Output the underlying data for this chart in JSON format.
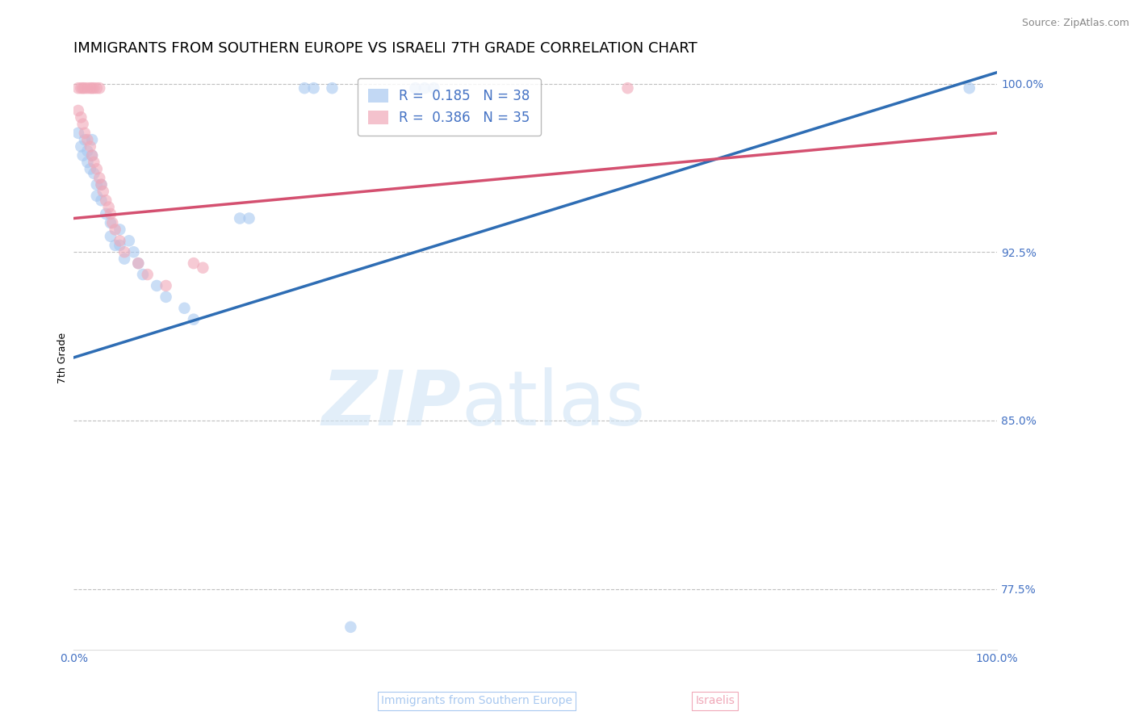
{
  "title": "IMMIGRANTS FROM SOUTHERN EUROPE VS ISRAELI 7TH GRADE CORRELATION CHART",
  "source": "Source: ZipAtlas.com",
  "ylabel": "7th Grade",
  "xlim": [
    0.0,
    1.0
  ],
  "ylim": [
    0.748,
    1.008
  ],
  "yticks": [
    1.0,
    0.925,
    0.85,
    0.775
  ],
  "ytick_labels": [
    "100.0%",
    "92.5%",
    "85.0%",
    "77.5%"
  ],
  "xtick_labels": [
    "0.0%",
    "100.0%"
  ],
  "xticks": [
    0.0,
    1.0
  ],
  "legend_r1": "R =  0.185   N = 38",
  "legend_r2": "R =  0.386   N = 35",
  "blue_scatter": [
    [
      0.005,
      0.978
    ],
    [
      0.008,
      0.972
    ],
    [
      0.01,
      0.968
    ],
    [
      0.012,
      0.975
    ],
    [
      0.015,
      0.97
    ],
    [
      0.015,
      0.965
    ],
    [
      0.018,
      0.962
    ],
    [
      0.02,
      0.975
    ],
    [
      0.02,
      0.968
    ],
    [
      0.022,
      0.96
    ],
    [
      0.025,
      0.955
    ],
    [
      0.025,
      0.95
    ],
    [
      0.03,
      0.955
    ],
    [
      0.03,
      0.948
    ],
    [
      0.035,
      0.942
    ],
    [
      0.04,
      0.938
    ],
    [
      0.04,
      0.932
    ],
    [
      0.045,
      0.928
    ],
    [
      0.05,
      0.935
    ],
    [
      0.05,
      0.928
    ],
    [
      0.055,
      0.922
    ],
    [
      0.06,
      0.93
    ],
    [
      0.065,
      0.925
    ],
    [
      0.07,
      0.92
    ],
    [
      0.075,
      0.915
    ],
    [
      0.09,
      0.91
    ],
    [
      0.1,
      0.905
    ],
    [
      0.12,
      0.9
    ],
    [
      0.13,
      0.895
    ],
    [
      0.18,
      0.94
    ],
    [
      0.19,
      0.94
    ],
    [
      0.25,
      0.998
    ],
    [
      0.26,
      0.998
    ],
    [
      0.28,
      0.998
    ],
    [
      0.37,
      0.998
    ],
    [
      0.38,
      0.998
    ],
    [
      0.39,
      0.998
    ],
    [
      0.3,
      0.758
    ],
    [
      0.97,
      0.998
    ]
  ],
  "pink_scatter": [
    [
      0.005,
      0.998
    ],
    [
      0.008,
      0.998
    ],
    [
      0.01,
      0.998
    ],
    [
      0.012,
      0.998
    ],
    [
      0.015,
      0.998
    ],
    [
      0.018,
      0.998
    ],
    [
      0.02,
      0.998
    ],
    [
      0.022,
      0.998
    ],
    [
      0.025,
      0.998
    ],
    [
      0.028,
      0.998
    ],
    [
      0.005,
      0.988
    ],
    [
      0.008,
      0.985
    ],
    [
      0.01,
      0.982
    ],
    [
      0.012,
      0.978
    ],
    [
      0.015,
      0.975
    ],
    [
      0.018,
      0.972
    ],
    [
      0.02,
      0.968
    ],
    [
      0.022,
      0.965
    ],
    [
      0.025,
      0.962
    ],
    [
      0.028,
      0.958
    ],
    [
      0.03,
      0.955
    ],
    [
      0.032,
      0.952
    ],
    [
      0.035,
      0.948
    ],
    [
      0.038,
      0.945
    ],
    [
      0.04,
      0.942
    ],
    [
      0.042,
      0.938
    ],
    [
      0.045,
      0.935
    ],
    [
      0.05,
      0.93
    ],
    [
      0.055,
      0.925
    ],
    [
      0.07,
      0.92
    ],
    [
      0.08,
      0.915
    ],
    [
      0.1,
      0.91
    ],
    [
      0.13,
      0.92
    ],
    [
      0.14,
      0.918
    ],
    [
      0.6,
      0.998
    ]
  ],
  "blue_line_x": [
    0.0,
    1.0
  ],
  "blue_line_y": [
    0.878,
    1.005
  ],
  "pink_line_x": [
    0.0,
    1.0
  ],
  "pink_line_y": [
    0.94,
    0.978
  ],
  "scatter_size": 110,
  "blue_color": "#A8C8F0",
  "blue_line_color": "#2E6DB4",
  "pink_color": "#F0A8B8",
  "pink_line_color": "#D45070",
  "background_color": "#FFFFFF",
  "grid_color": "#C0C0C0",
  "title_fontsize": 13,
  "axis_label_fontsize": 9,
  "tick_fontsize": 10,
  "tick_color": "#4472C4",
  "watermark_zip": "ZIP",
  "watermark_atlas": "atlas"
}
